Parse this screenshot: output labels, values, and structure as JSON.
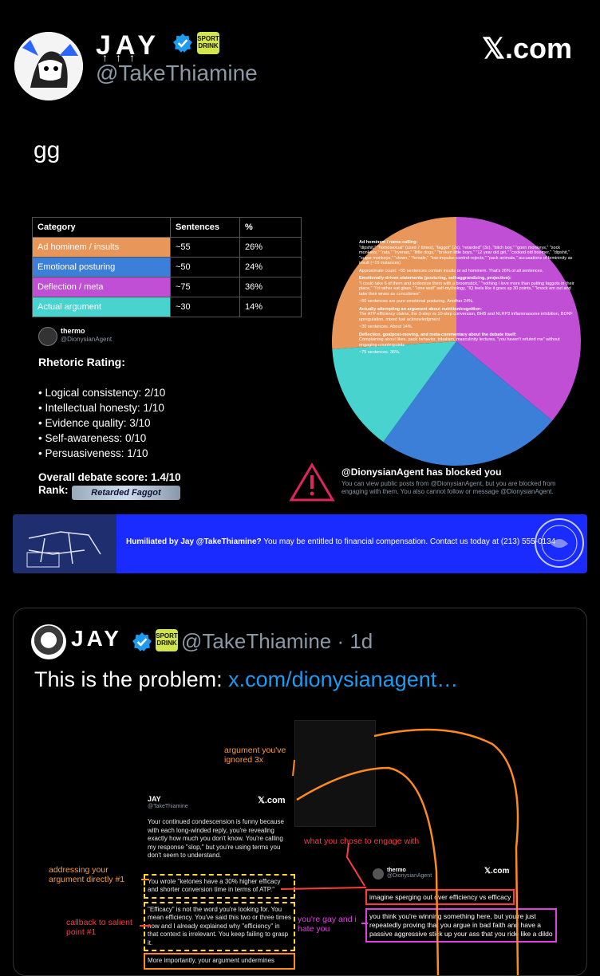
{
  "header": {
    "display_name": "JAY",
    "handle": "@TakeThiamine",
    "badge_text": "SPORT DRINK",
    "site": "𝕏.com",
    "arrows": "↑↑↑"
  },
  "tweet": {
    "text": "gg"
  },
  "table": {
    "headers": [
      "Category",
      "Sentences",
      "%"
    ],
    "rows": [
      {
        "category": "Ad hominem / insults",
        "sentences": "~55",
        "percent": "26%",
        "color": "#e8965a"
      },
      {
        "category": "Emotional posturing",
        "sentences": "~50",
        "percent": "24%",
        "color": "#3b7fd9"
      },
      {
        "category": "Deflection / meta",
        "sentences": "~75",
        "percent": "36%",
        "color": "#c04fd6"
      },
      {
        "category": "Actual argument",
        "sentences": "~30",
        "percent": "14%",
        "color": "#49d3cf"
      }
    ]
  },
  "thermo": {
    "name": "thermo",
    "handle": "@DionysianAgent"
  },
  "rating": {
    "title": "Rhetoric Rating:",
    "items": [
      "• Logical consistency: 2/10",
      "• Intellectual honesty: 1/10",
      "• Evidence quality: 3/10",
      "• Self-awareness: 0/10",
      "• Persuasiveness: 1/10"
    ],
    "score": "Overall debate score: 1.4/10",
    "rank_label": "Rank:",
    "rank_value": "Retarded Faggot"
  },
  "pie": {
    "slices": [
      {
        "label": "Ad hominem",
        "value": 26,
        "color": "#e8965a"
      },
      {
        "label": "Deflection",
        "value": 36,
        "color": "#c04fd6"
      },
      {
        "label": "Emotional",
        "value": 24,
        "color": "#3b7fd9"
      },
      {
        "label": "Actual argument",
        "value": 14,
        "color": "#49d3cf"
      }
    ],
    "text": {
      "h1": "Ad hominem / name-calling:",
      "p1": "\"dipshit,\" \"homosexual\" (used 7 times), \"faggot\" (2x), \"retarded\" (3x), \"bitch boy,\" \"goon monkeys,\" \"sock monkeys,\" \"rats,\" \"hyenas,\" \"little dogs,\" \"broken little boys,\" \"12 year old girl,\" \"cooked old boomer,\" \"dipshit,\" \"sugar monkeys,\" \"clown,\" \"female,\" \"low-impulse-control-rejects,\" \"pack animals,\" accusations of femininity as insult (~15 instances)",
      "p2": "Approximate count: ~55 sentences contain insults or ad hominem. That's 26% of all sentences.",
      "h2": "Emotionally-driven statements (posturing, self-aggrandizing, projection):",
      "p3": "\"I could take 6 of them and sodomize them with a broomstick,\" \"nothing I love more than putting faggots in their place,\" \"I'd rather eat glass,\" \"lone wolf\" self-mythology, \"IQ feels like it goes up 30 points,\" \"knock em out and take their wives as concubines\"",
      "p4": "~50 sentences are pure emotional posturing. Another 24%.",
      "h3": "Actually attempting an argument about nutrition/cognition:",
      "p5": "The ATP efficiency claims, the 3-step vs 10-step conversion, BHB and NLRP3 inflammasome inhibition, BDNF upregulation, mixed fuel acknowledgment",
      "p6": "~30 sentences. About 14%.",
      "h4": "Deflection, goalpost-moving, and meta-commentary about the debate itself:",
      "p7": "Complaining about likes, pack behavior, tribalism, masculinity lectures, \"you haven't refuted me\" without engaging counterpoints",
      "p8": "~75 sentences. 36%."
    }
  },
  "blocked": {
    "title": "@DionysianAgent has blocked you",
    "body": "You can view public posts from @DionysianAgent, but you are blocked from engaging with them. You also cannot follow or message @DionysianAgent."
  },
  "banner": {
    "bold": "Humiliated by Jay @TakeThiamine?",
    "rest": " You may be entitled to financial compensation. Contact us today at (213) 555-0134"
  },
  "quote": {
    "display_name": "JAY",
    "handle": "@TakeThiamine · 1d",
    "text": "This is the problem: ",
    "link": "x.com/dionysianagent…",
    "embedded": {
      "name": "JAY",
      "handle": "@TakeThiamine",
      "site": "𝕏.com",
      "p1": "Your continued condescension is funny because with each long-winded reply, you're revealing exactly how much you don't know. You're calling my response \"slop,\" but you're using terms you don't seem to understand.",
      "p2": "You wrote \"ketones have a 30% higher efficacy and shorter conversion time in terms of ATP.\"",
      "p3": "\"Efficacy\" is not the word you're looking for. You mean efficiency. You've said this two or three times now and I already explained why \"efficiency\" in that context is irrelevant. You keep failing to grasp it.",
      "p4": "More importantly, your argument undermines",
      "ann_ignored": "argument you've ignored 3x",
      "ann_engage": "what you chose to engage with",
      "ann_direct": "addressing your argument directly #1",
      "ann_callback": "callback to salient point #1",
      "ann_gay": "you're gay and i hate you",
      "reply_name": "thermo",
      "reply_handle": "@DionysianAgent",
      "reply_line1": "imagine sperging out over efficiency vs efficacy",
      "reply_body": "you think you're winning something here, but you're just repeatedly proving that you argue in bad faith and have a passive aggressive stick up your ass that you ride like a dildo"
    }
  }
}
